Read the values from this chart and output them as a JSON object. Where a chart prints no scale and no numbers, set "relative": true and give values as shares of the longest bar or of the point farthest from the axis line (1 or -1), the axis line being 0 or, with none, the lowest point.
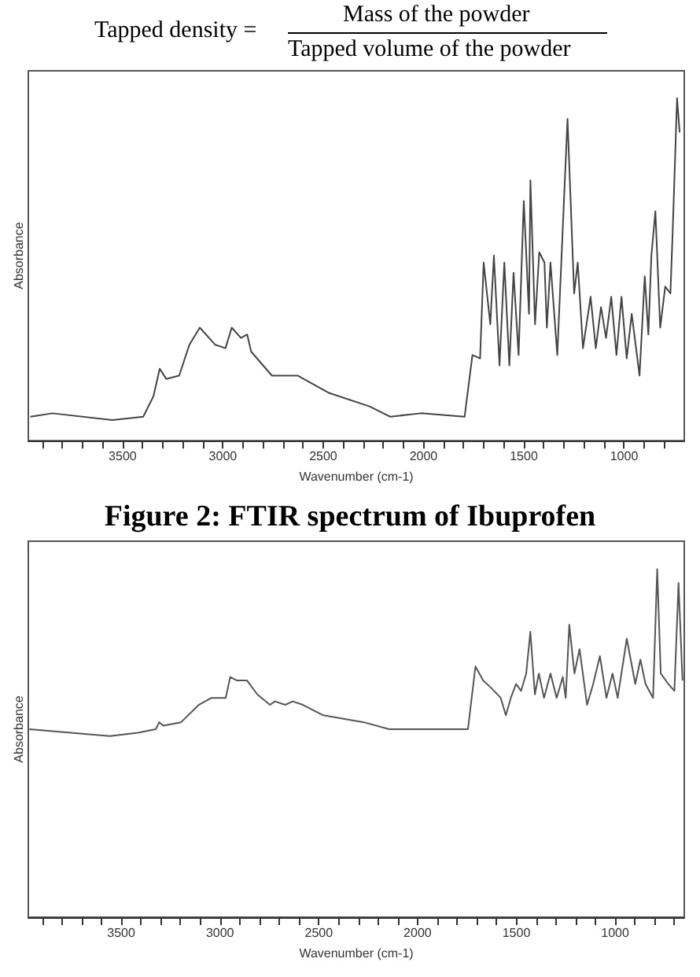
{
  "chart_data": [
    {
      "type": "line",
      "relative": true,
      "xlabel": "Wavenumber (cm-1)",
      "ylabel": "Absorbance",
      "annotations": [
        "Tapped density =",
        "Mass of the powder",
        "Tapped volume of the powder"
      ],
      "xlim": [
        3970,
        700
      ],
      "xticks": [
        {
          "value": 3900,
          "label": null
        },
        {
          "value": 3800,
          "label": null
        },
        {
          "value": 3700,
          "label": null
        },
        {
          "value": 3600,
          "label": null
        },
        3500,
        {
          "value": 3400,
          "label": null
        },
        {
          "value": 3300,
          "label": null
        },
        {
          "value": 3200,
          "label": null
        },
        {
          "value": 3100,
          "label": null
        },
        3000,
        {
          "value": 2900,
          "label": null
        },
        {
          "value": 2800,
          "label": null
        },
        {
          "value": 2700,
          "label": null
        },
        {
          "value": 2600,
          "label": null
        },
        2500,
        {
          "value": 2400,
          "label": null
        },
        {
          "value": 2300,
          "label": null
        },
        {
          "value": 2200,
          "label": null
        },
        {
          "value": 2100,
          "label": null
        },
        2000,
        {
          "value": 1900,
          "label": null
        },
        {
          "value": 1800,
          "label": null
        },
        {
          "value": 1700,
          "label": null
        },
        {
          "value": 1600,
          "label": null
        },
        1500,
        {
          "value": 1400,
          "label": null
        },
        {
          "value": 1300,
          "label": null
        },
        {
          "value": 1200,
          "label": null
        },
        {
          "value": 1100,
          "label": null
        },
        1000,
        {
          "value": 900,
          "label": null
        },
        {
          "value": 800,
          "label": null
        }
      ],
      "marker": "none",
      "line_style": "solid",
      "series": [
        {
          "color": "#444444",
          "x": [
            3960,
            3850,
            3551,
            3397,
            3346,
            3315,
            3282,
            3218,
            3167,
            3115,
            3038,
            2987,
            2956,
            2910,
            2879,
            2859,
            2756,
            2628,
            2474,
            2269,
            2167,
            2013,
            1795,
            1756,
            1718,
            1700,
            1667,
            1649,
            1621,
            1597,
            1572,
            1551,
            1526,
            1500,
            1474,
            1467,
            1444,
            1423,
            1397,
            1385,
            1367,
            1333,
            1282,
            1249,
            1231,
            1205,
            1167,
            1141,
            1115,
            1090,
            1064,
            1038,
            1013,
            987,
            962,
            923,
            897,
            879,
            864,
            844,
            820,
            795,
            769,
            756,
            736,
            723
          ],
          "values": [
            0.07,
            0.08,
            0.06,
            0.07,
            0.13,
            0.21,
            0.18,
            0.19,
            0.28,
            0.33,
            0.28,
            0.27,
            0.33,
            0.3,
            0.31,
            0.26,
            0.19,
            0.19,
            0.14,
            0.1,
            0.07,
            0.08,
            0.07,
            0.25,
            0.24,
            0.52,
            0.34,
            0.54,
            0.22,
            0.52,
            0.22,
            0.49,
            0.25,
            0.7,
            0.37,
            0.76,
            0.34,
            0.55,
            0.52,
            0.33,
            0.52,
            0.25,
            0.94,
            0.43,
            0.52,
            0.27,
            0.42,
            0.27,
            0.39,
            0.3,
            0.42,
            0.25,
            0.42,
            0.24,
            0.37,
            0.19,
            0.48,
            0.31,
            0.54,
            0.67,
            0.33,
            0.45,
            0.43,
            0.64,
            1,
            0.9
          ]
        }
      ]
    },
    {
      "type": "line",
      "relative": true,
      "title": "Figure 2: FTIR spectrum of Ibuprofen",
      "xlabel": "Wavenumber (cm-1)",
      "ylabel": "Absorbance",
      "xlim": [
        3970,
        650
      ],
      "xticks": [
        {
          "value": 3900,
          "label": null
        },
        {
          "value": 3800,
          "label": null
        },
        {
          "value": 3700,
          "label": null
        },
        {
          "value": 3600,
          "label": null
        },
        3500,
        {
          "value": 3400,
          "label": null
        },
        {
          "value": 3300,
          "label": null
        },
        {
          "value": 3200,
          "label": null
        },
        {
          "value": 3100,
          "label": null
        },
        3000,
        {
          "value": 2900,
          "label": null
        },
        {
          "value": 2800,
          "label": null
        },
        {
          "value": 2700,
          "label": null
        },
        {
          "value": 2600,
          "label": null
        },
        2500,
        {
          "value": 2400,
          "label": null
        },
        {
          "value": 2300,
          "label": null
        },
        {
          "value": 2200,
          "label": null
        },
        {
          "value": 2100,
          "label": null
        },
        2000,
        {
          "value": 1900,
          "label": null
        },
        {
          "value": 1800,
          "label": null
        },
        {
          "value": 1700,
          "label": null
        },
        {
          "value": 1600,
          "label": null
        },
        1500,
        {
          "value": 1400,
          "label": null
        },
        {
          "value": 1300,
          "label": null
        },
        {
          "value": 1200,
          "label": null
        },
        {
          "value": 1100,
          "label": null
        },
        1000,
        {
          "value": 900,
          "label": null
        },
        {
          "value": 800,
          "label": null
        },
        {
          "value": 700,
          "label": null
        }
      ],
      "marker": "none",
      "line_style": "solid",
      "series": [
        {
          "color": "#555555",
          "x": [
            3965,
            3557,
            3415,
            3325,
            3307,
            3287,
            3197,
            3107,
            3043,
            2971,
            2948,
            2914,
            2863,
            2811,
            2747,
            2722,
            2670,
            2632,
            2580,
            2477,
            2272,
            2144,
            2015,
            1745,
            1707,
            1668,
            1630,
            1579,
            1553,
            1528,
            1501,
            1476,
            1450,
            1429,
            1406,
            1386,
            1360,
            1327,
            1296,
            1265,
            1250,
            1232,
            1206,
            1180,
            1142,
            1111,
            1077,
            1044,
            1013,
            987,
            941,
            898,
            872,
            846,
            808,
            787,
            769,
            731,
            700,
            679,
            659
          ],
          "values": [
            0.54,
            0.52,
            0.53,
            0.54,
            0.56,
            0.55,
            0.56,
            0.61,
            0.63,
            0.63,
            0.69,
            0.68,
            0.68,
            0.64,
            0.61,
            0.62,
            0.61,
            0.62,
            0.61,
            0.58,
            0.56,
            0.54,
            0.54,
            0.54,
            0.72,
            0.68,
            0.66,
            0.63,
            0.58,
            0.63,
            0.67,
            0.65,
            0.7,
            0.82,
            0.64,
            0.7,
            0.63,
            0.7,
            0.63,
            0.69,
            0.63,
            0.84,
            0.7,
            0.77,
            0.61,
            0.67,
            0.75,
            0.63,
            0.7,
            0.63,
            0.8,
            0.67,
            0.74,
            0.67,
            0.63,
            1,
            0.7,
            0.67,
            0.65,
            0.96,
            0.68
          ]
        }
      ]
    }
  ]
}
